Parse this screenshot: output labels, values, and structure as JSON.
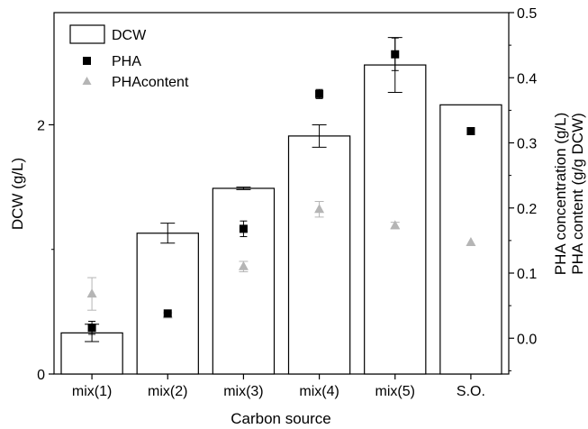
{
  "chart_data": {
    "type": "bar",
    "categories": [
      "mix(1)",
      "mix(2)",
      "mix(3)",
      "mix(4)",
      "mix(5)",
      "S.O."
    ],
    "xlabel": "Carbon source",
    "ylabel_left": "DCW (g/L)",
    "ylabel_right": [
      "PHA concentration (g/L)",
      "PHA content (g/g DCW)"
    ],
    "left_axis": {
      "ylim": [
        0,
        2.9
      ],
      "ticks": [
        0,
        2
      ],
      "tick_labels": [
        "0",
        "2"
      ]
    },
    "right_axis": {
      "ylim": [
        -0.055,
        0.5
      ],
      "ticks": [
        0.0,
        0.1,
        0.2,
        0.3,
        0.4,
        0.5
      ],
      "tick_labels": [
        "0.0",
        "0.1",
        "0.2",
        "0.3",
        "0.4",
        "0.5"
      ]
    },
    "grid": false,
    "legend_position": "top-left",
    "series": [
      {
        "name": "DCW",
        "kind": "bar",
        "axis": "left",
        "values": [
          0.33,
          1.13,
          1.49,
          1.91,
          2.48,
          2.16
        ],
        "errors": [
          0.07,
          0.08,
          0.01,
          0.09,
          0.22,
          null
        ]
      },
      {
        "name": "PHA",
        "kind": "marker",
        "marker": "square",
        "axis": "right",
        "values": [
          0.016,
          0.038,
          0.168,
          0.375,
          0.436,
          0.318
        ],
        "errors": [
          0.01,
          0.003,
          0.012,
          0.007,
          0.025,
          null
        ]
      },
      {
        "name": "PHAcontent",
        "kind": "marker",
        "marker": "triangle",
        "axis": "right",
        "values": [
          0.068,
          0.036,
          0.11,
          0.198,
          0.173,
          0.147
        ],
        "errors": [
          0.025,
          0.003,
          0.008,
          0.012,
          0.005,
          null
        ]
      }
    ],
    "colors": {
      "bar_fill": "#ffffff",
      "bar_stroke": "#000000",
      "pha": "#000000",
      "pha_content": "#b5b5b5"
    }
  }
}
